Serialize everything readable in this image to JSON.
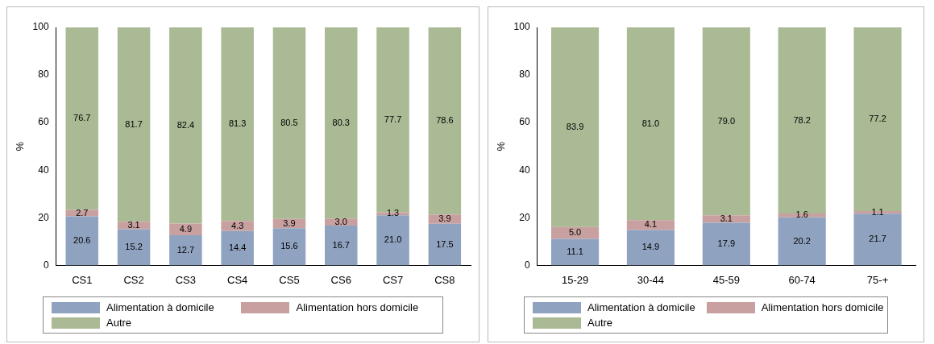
{
  "chart_data": [
    {
      "type": "bar",
      "stacked": true,
      "ylabel": "%",
      "categories": [
        "CS1",
        "CS2",
        "CS3",
        "CS4",
        "CS5",
        "CS6",
        "CS7",
        "CS8"
      ],
      "ylim": [
        0,
        100
      ],
      "yticks": [
        0,
        20,
        40,
        60,
        80,
        100
      ],
      "legend": "bottom",
      "series": [
        {
          "name": "Alimentation à domicile",
          "color": "#8fa2bf",
          "values": [
            20.6,
            15.2,
            12.7,
            14.4,
            15.6,
            16.7,
            21.0,
            17.5
          ],
          "value_labels": [
            "20.6",
            "15.2",
            "12.7",
            "14.4",
            "15.6",
            "16.7",
            "21.0",
            "17.5"
          ]
        },
        {
          "name": "Alimentation hors domicile",
          "color": "#c8a0a0",
          "values": [
            2.7,
            3.1,
            4.9,
            4.3,
            3.9,
            3.0,
            1.3,
            3.9
          ],
          "value_labels": [
            "2.7",
            "3.1",
            "4.9",
            "4.3",
            "3.9",
            "3.0",
            "1.3",
            "3.9"
          ]
        },
        {
          "name": "Autre",
          "color": "#a9ba94",
          "values": [
            76.7,
            81.7,
            82.4,
            81.3,
            80.5,
            80.3,
            77.7,
            78.6
          ],
          "value_labels": [
            "76.7",
            "81.7",
            "82.4",
            "81.3",
            "80.5",
            "80.3",
            "77.7",
            "78.6"
          ]
        }
      ]
    },
    {
      "type": "bar",
      "stacked": true,
      "ylabel": "%",
      "categories": [
        "15-29",
        "30-44",
        "45-59",
        "60-74",
        "75-+"
      ],
      "ylim": [
        0,
        100
      ],
      "yticks": [
        0,
        20,
        40,
        60,
        80,
        100
      ],
      "legend": "bottom",
      "series": [
        {
          "name": "Alimentation à domicile",
          "color": "#8fa2bf",
          "values": [
            11.1,
            14.9,
            17.9,
            20.2,
            21.7
          ],
          "value_labels": [
            "11.1",
            "14.9",
            "17.9",
            "20.2",
            "21.7"
          ]
        },
        {
          "name": "Alimentation hors domicile",
          "color": "#c8a0a0",
          "values": [
            5.0,
            4.1,
            3.1,
            1.6,
            1.1
          ],
          "value_labels": [
            "5.0",
            "4.1",
            "3.1",
            "1.6",
            "1.1"
          ]
        },
        {
          "name": "Autre",
          "color": "#a9ba94",
          "values": [
            83.9,
            81.0,
            79.0,
            78.2,
            77.2
          ],
          "value_labels": [
            "83.9",
            "81.0",
            "79.0",
            "78.2",
            "77.2"
          ]
        }
      ]
    }
  ]
}
